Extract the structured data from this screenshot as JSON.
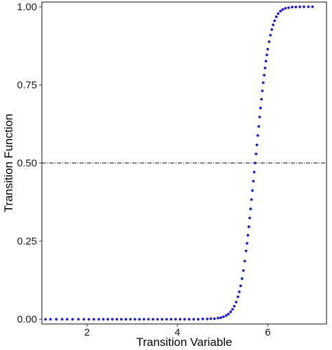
{
  "chart_data": {
    "type": "scatter",
    "title": "",
    "xlabel": "Transition Variable",
    "ylabel": "Transition Function",
    "xlim": [
      1.0,
      7.3
    ],
    "ylim": [
      -0.015,
      1.015
    ],
    "x_ticks": [
      2,
      4,
      6
    ],
    "x_tick_labels": [
      "2",
      "4",
      "6"
    ],
    "y_ticks": [
      0.0,
      0.25,
      0.5,
      0.75,
      1.0
    ],
    "y_tick_labels": [
      "0.00",
      "0.25",
      "0.50",
      "0.75",
      "1.00"
    ],
    "grid": false,
    "legend": "none",
    "reference_line": {
      "y": 0.5,
      "style": "dashdot",
      "color": "#000000"
    },
    "point_color": "#1a1acc",
    "series": [
      {
        "points": [
          [
            1.08,
            0.0
          ],
          [
            1.19,
            0.0
          ],
          [
            1.32,
            0.0
          ],
          [
            1.45,
            0.0
          ],
          [
            1.56,
            0.0
          ],
          [
            1.68,
            0.0
          ],
          [
            1.81,
            0.0
          ],
          [
            1.93,
            0.0
          ],
          [
            2.04,
            0.0
          ],
          [
            2.15,
            0.0
          ],
          [
            2.26,
            0.0
          ],
          [
            2.36,
            0.0
          ],
          [
            2.46,
            0.0
          ],
          [
            2.56,
            0.0
          ],
          [
            2.66,
            0.0
          ],
          [
            2.76,
            0.0
          ],
          [
            2.86,
            0.0
          ],
          [
            2.96,
            0.0
          ],
          [
            3.06,
            0.0
          ],
          [
            3.16,
            0.0
          ],
          [
            3.26,
            0.0
          ],
          [
            3.36,
            0.0
          ],
          [
            3.46,
            0.0
          ],
          [
            3.56,
            0.0
          ],
          [
            3.66,
            0.0
          ],
          [
            3.76,
            0.0
          ],
          [
            3.86,
            0.0
          ],
          [
            3.96,
            0.0
          ],
          [
            4.06,
            0.0
          ],
          [
            4.16,
            0.0
          ],
          [
            4.26,
            0.0
          ],
          [
            4.36,
            0.0
          ],
          [
            4.46,
            0.0
          ],
          [
            4.56,
            0.001
          ],
          [
            4.66,
            0.001
          ],
          [
            4.74,
            0.002
          ],
          [
            4.82,
            0.002
          ],
          [
            4.9,
            0.004
          ],
          [
            4.96,
            0.005
          ],
          [
            5.02,
            0.008
          ],
          [
            5.08,
            0.012
          ],
          [
            5.13,
            0.017
          ],
          [
            5.18,
            0.024
          ],
          [
            5.22,
            0.032
          ],
          [
            5.26,
            0.042
          ],
          [
            5.3,
            0.055
          ],
          [
            5.34,
            0.072
          ],
          [
            5.37,
            0.088
          ],
          [
            5.4,
            0.107
          ],
          [
            5.43,
            0.13
          ],
          [
            5.46,
            0.156
          ],
          [
            5.49,
            0.186
          ],
          [
            5.52,
            0.219
          ],
          [
            5.54,
            0.243
          ],
          [
            5.56,
            0.269
          ],
          [
            5.58,
            0.296
          ],
          [
            5.6,
            0.324
          ],
          [
            5.62,
            0.353
          ],
          [
            5.64,
            0.383
          ],
          [
            5.66,
            0.412
          ],
          [
            5.68,
            0.442
          ],
          [
            5.7,
            0.471
          ],
          [
            5.72,
            0.5
          ],
          [
            5.74,
            0.529
          ],
          [
            5.76,
            0.558
          ],
          [
            5.78,
            0.588
          ],
          [
            5.8,
            0.617
          ],
          [
            5.82,
            0.647
          ],
          [
            5.84,
            0.676
          ],
          [
            5.86,
            0.704
          ],
          [
            5.88,
            0.731
          ],
          [
            5.9,
            0.757
          ],
          [
            5.92,
            0.781
          ],
          [
            5.94,
            0.804
          ],
          [
            5.96,
            0.826
          ],
          [
            5.98,
            0.846
          ],
          [
            6.0,
            0.864
          ],
          [
            6.03,
            0.888
          ],
          [
            6.06,
            0.909
          ],
          [
            6.09,
            0.927
          ],
          [
            6.12,
            0.942
          ],
          [
            6.15,
            0.955
          ],
          [
            6.19,
            0.968
          ],
          [
            6.23,
            0.978
          ],
          [
            6.28,
            0.986
          ],
          [
            6.33,
            0.991
          ],
          [
            6.39,
            0.995
          ],
          [
            6.46,
            0.997
          ],
          [
            6.54,
            0.999
          ],
          [
            6.62,
            0.999
          ],
          [
            6.71,
            1.0
          ],
          [
            6.8,
            1.0
          ],
          [
            6.9,
            1.0
          ],
          [
            6.99,
            1.0
          ]
        ]
      }
    ]
  }
}
